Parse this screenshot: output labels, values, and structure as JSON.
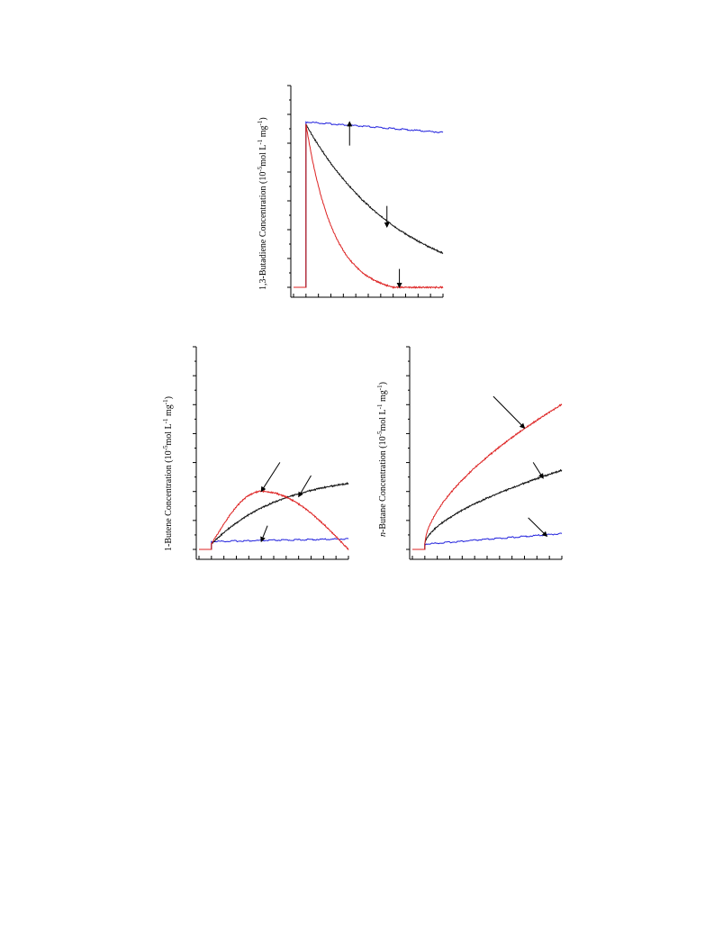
{
  "chart_data": [
    {
      "id": "butadiene",
      "type": "line",
      "ylabel_parts": [
        "1,3-Butadiene Concentration (10",
        "-5",
        "mol L",
        "-1",
        "mg",
        "-1",
        ")"
      ],
      "xlim": [
        0,
        12
      ],
      "ylim": [
        0,
        7
      ],
      "x_ticks": 12,
      "y_ticks": 7,
      "series": [
        {
          "color": "#2222dd",
          "shape": "flat",
          "points": [
            [
              0,
              0
            ],
            [
              1,
              0
            ],
            [
              1,
              6.3
            ],
            [
              12,
              5.9
            ]
          ]
        },
        {
          "color": "#111111",
          "shape": "exp",
          "start": [
            1,
            6.2
          ],
          "end": [
            12,
            1.3
          ],
          "k": 0.13
        },
        {
          "color": "#dd2222",
          "shape": "exp_floor",
          "start": [
            1,
            6.2
          ],
          "floor_x": 8,
          "k": 0.45
        }
      ],
      "arrows": [
        {
          "from": [
            4.5,
            5.4
          ],
          "to": [
            4.5,
            6.3
          ]
        },
        {
          "from": [
            7.5,
            3.1
          ],
          "to": [
            7.5,
            2.3
          ]
        },
        {
          "from": [
            8.5,
            0.7
          ],
          "to": [
            8.5,
            0
          ]
        }
      ]
    },
    {
      "id": "butene",
      "type": "line",
      "ylabel_parts": [
        "1-Butene Concentration (10",
        "-5",
        "mol L",
        "-1",
        "mg",
        "-1",
        ")"
      ],
      "xlim": [
        0,
        12
      ],
      "ylim": [
        0,
        7
      ],
      "x_ticks": 12,
      "y_ticks": 7,
      "series": [
        {
          "color": "#2222dd",
          "shape": "flat",
          "points": [
            [
              0,
              0
            ],
            [
              1,
              0
            ],
            [
              1,
              0.3
            ],
            [
              12,
              0.4
            ]
          ]
        },
        {
          "color": "#111111",
          "shape": "rise",
          "start": [
            1,
            0.2
          ],
          "end": [
            12,
            2.5
          ],
          "k": 0.18
        },
        {
          "color": "#dd2222",
          "shape": "hump",
          "start": [
            1,
            0.2
          ],
          "peak": [
            5,
            2.2
          ],
          "end": [
            12,
            0
          ]
        }
      ],
      "arrows": [
        {
          "from": [
            6.5,
            3.3
          ],
          "to": [
            5,
            2.2
          ]
        },
        {
          "from": [
            9,
            2.8
          ],
          "to": [
            8,
            2
          ]
        },
        {
          "from": [
            5.5,
            0.9
          ],
          "to": [
            5,
            0.3
          ]
        }
      ]
    },
    {
      "id": "butane",
      "type": "line",
      "ylabel_parts": [
        "-Butane Concentration (10",
        "-5",
        "mol L",
        "-1",
        "mg",
        "-1",
        ")"
      ],
      "ylabel_italic_prefix": "n",
      "xlim": [
        0,
        12
      ],
      "ylim": [
        0,
        7
      ],
      "x_ticks": 12,
      "y_ticks": 7,
      "series": [
        {
          "color": "#2222dd",
          "shape": "flat",
          "points": [
            [
              0,
              0
            ],
            [
              1,
              0
            ],
            [
              1,
              0.2
            ],
            [
              12,
              0.6
            ]
          ]
        },
        {
          "color": "#111111",
          "shape": "sqrt",
          "start": [
            1,
            0.2
          ],
          "end": [
            12,
            3
          ]
        },
        {
          "color": "#dd2222",
          "shape": "sqrt",
          "start": [
            1,
            0.2
          ],
          "end": [
            12,
            5.5
          ]
        }
      ],
      "arrows": [
        {
          "from": [
            6.5,
            5.8
          ],
          "to": [
            9,
            4.6
          ]
        },
        {
          "from": [
            9.7,
            3.3
          ],
          "to": [
            10.5,
            2.7
          ]
        },
        {
          "from": [
            9.3,
            1.2
          ],
          "to": [
            10.8,
            0.5
          ]
        }
      ]
    }
  ]
}
